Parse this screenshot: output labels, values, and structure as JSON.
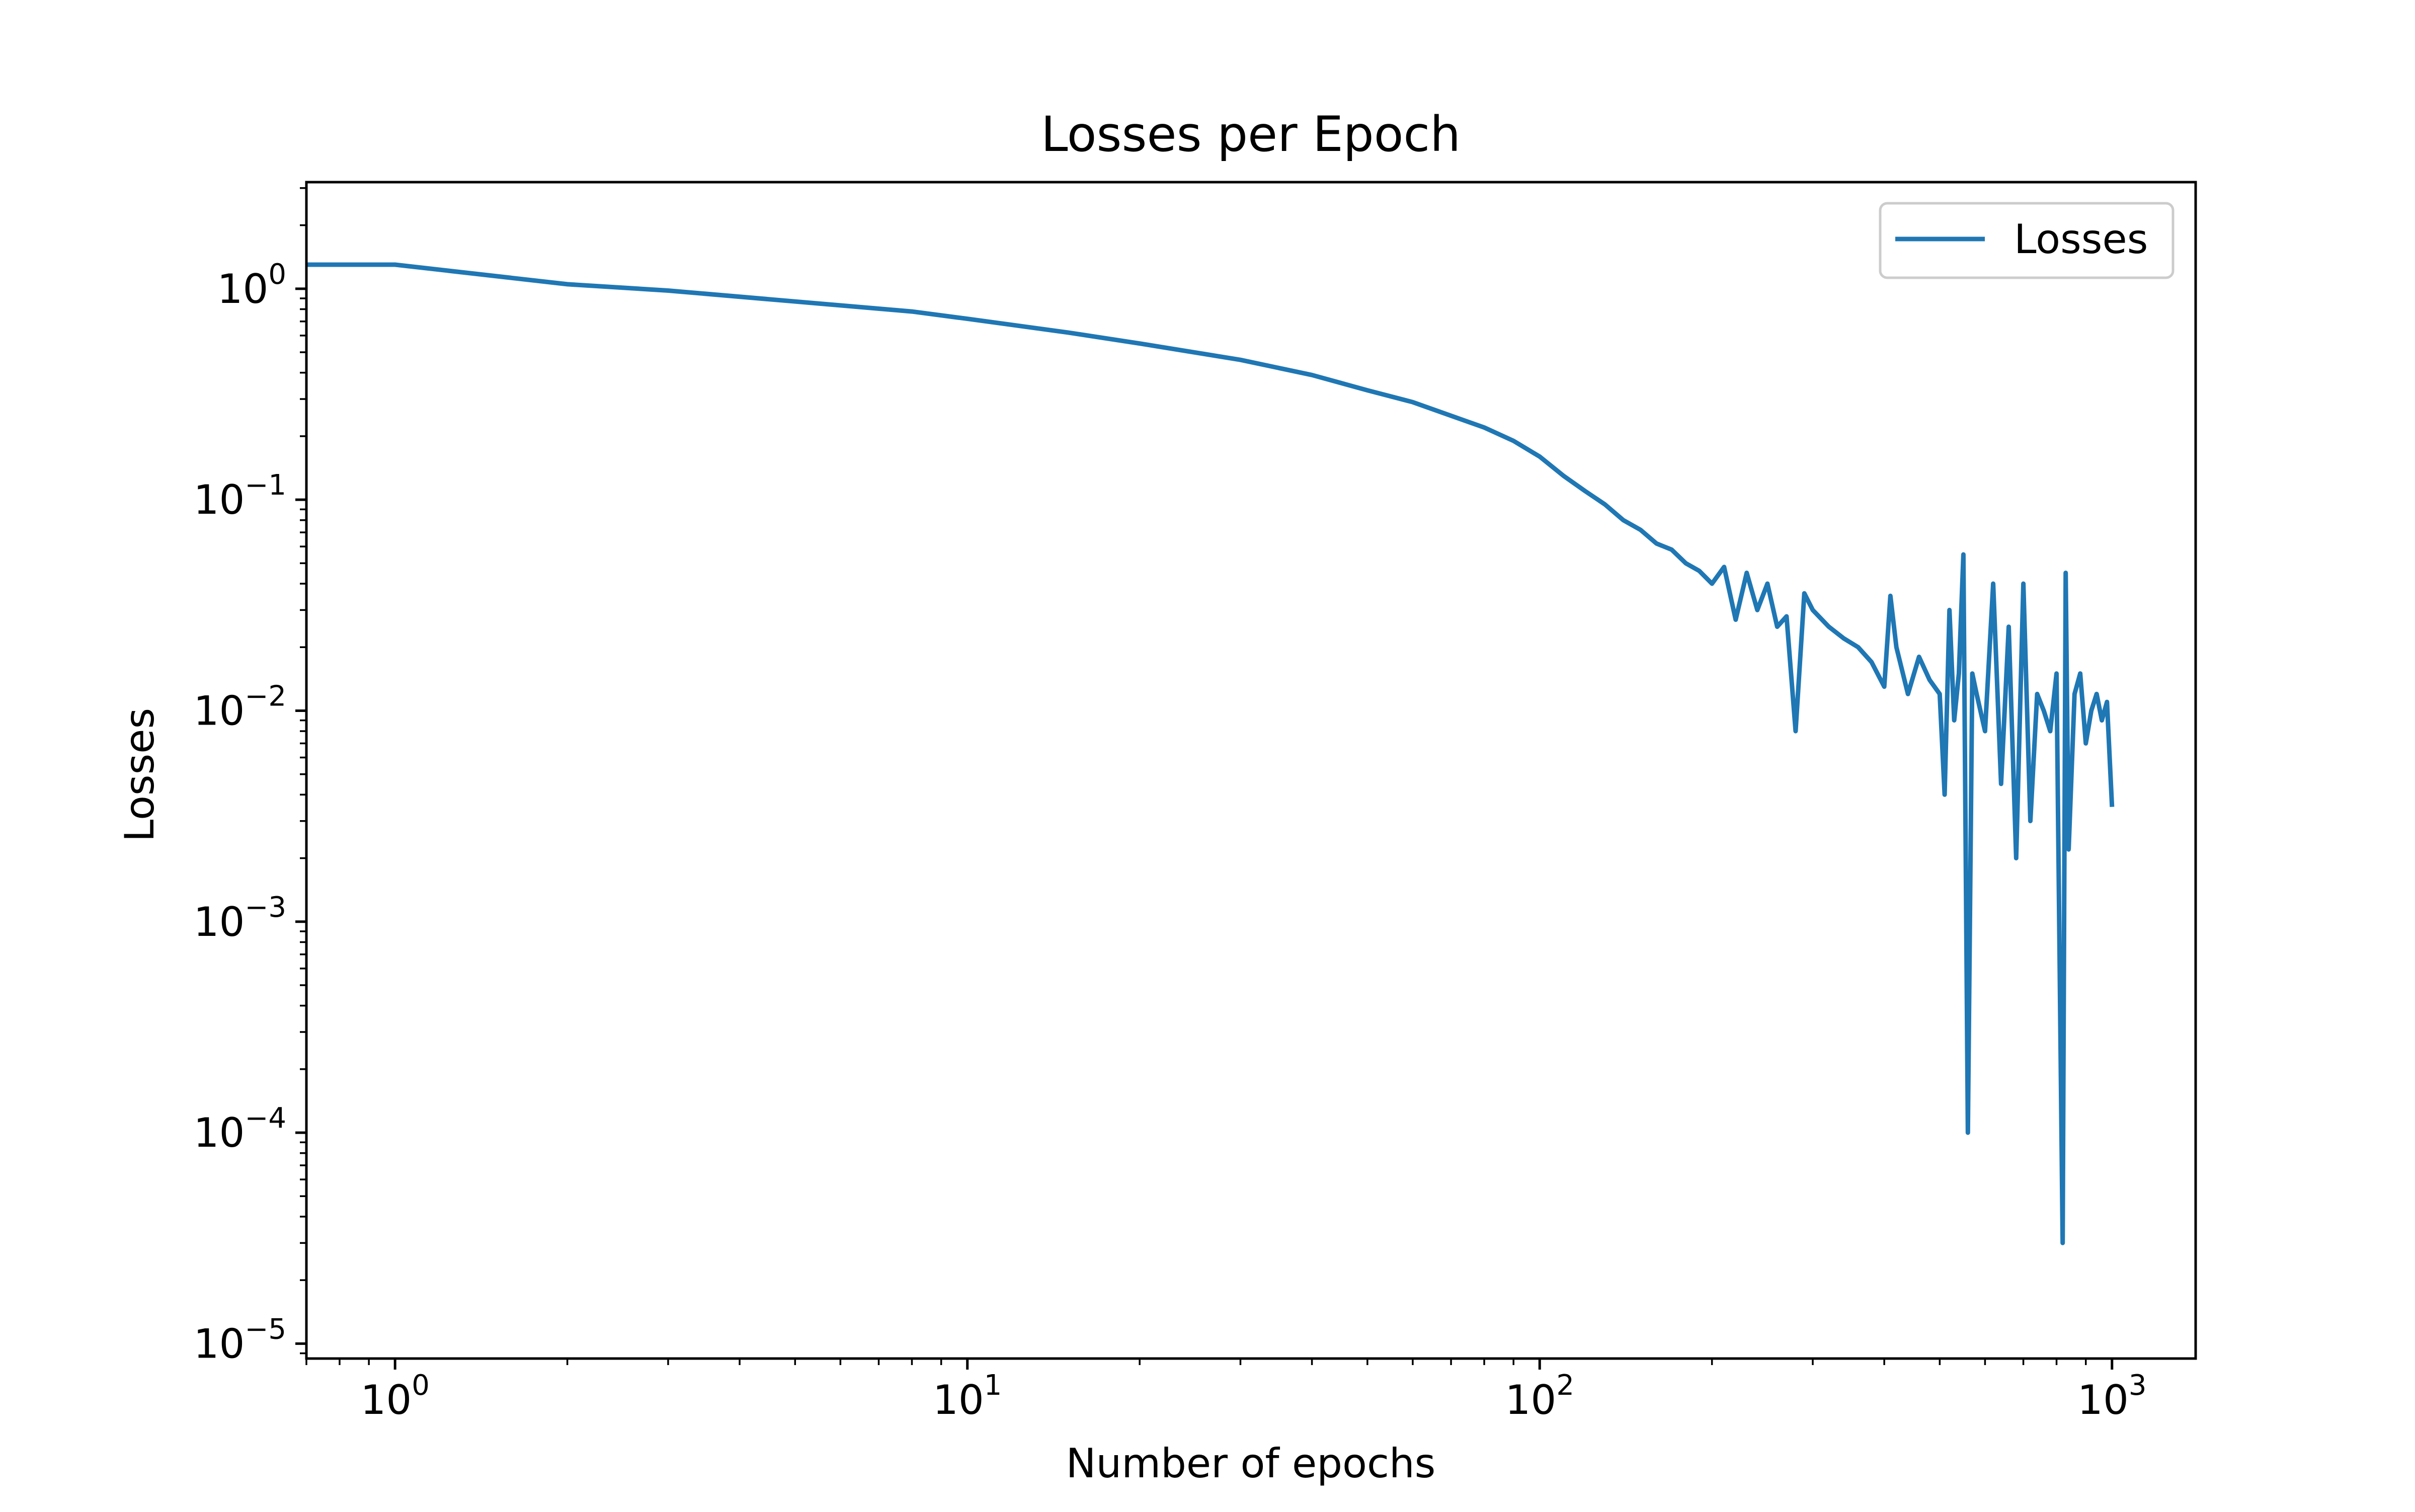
{
  "chart_data": {
    "type": "line",
    "title": "Losses per Epoch",
    "xlabel": "Number of epochs",
    "ylabel": "Losses",
    "x_scale": "log",
    "y_scale": "log",
    "xlim": [
      0.7,
      1400
    ],
    "ylim": [
      8.5e-06,
      3.2
    ],
    "grid": false,
    "legend_position": "upper-right",
    "x_tick_labels": [
      {
        "value": 1,
        "base": "10",
        "exp": "0"
      },
      {
        "value": 10,
        "base": "10",
        "exp": "1"
      },
      {
        "value": 100,
        "base": "10",
        "exp": "2"
      },
      {
        "value": 1000,
        "base": "10",
        "exp": "3"
      }
    ],
    "y_tick_labels": [
      {
        "value": 1,
        "base": "10",
        "exp": "0"
      },
      {
        "value": 0.1,
        "base": "10",
        "exp": "−1"
      },
      {
        "value": 0.01,
        "base": "10",
        "exp": "−2"
      },
      {
        "value": 0.001,
        "base": "10",
        "exp": "−3"
      },
      {
        "value": 0.0001,
        "base": "10",
        "exp": "−4"
      },
      {
        "value": 1e-05,
        "base": "10",
        "exp": "−5"
      }
    ],
    "series": [
      {
        "name": "Losses",
        "color": "#1f77b4",
        "x": [
          0,
          1,
          2,
          3,
          5,
          8,
          10,
          15,
          20,
          30,
          40,
          50,
          60,
          70,
          80,
          90,
          100,
          110,
          120,
          130,
          140,
          150,
          160,
          170,
          180,
          190,
          200,
          210,
          220,
          230,
          240,
          250,
          260,
          270,
          280,
          290,
          300,
          320,
          340,
          360,
          380,
          400,
          410,
          420,
          440,
          460,
          480,
          500,
          510,
          520,
          530,
          540,
          550,
          560,
          570,
          580,
          600,
          620,
          640,
          660,
          680,
          700,
          720,
          740,
          760,
          780,
          800,
          820,
          830,
          840,
          860,
          880,
          900,
          920,
          940,
          960,
          980,
          1000
        ],
        "y": [
          1.3,
          1.3,
          1.05,
          0.98,
          0.87,
          0.78,
          0.72,
          0.62,
          0.55,
          0.46,
          0.39,
          0.33,
          0.29,
          0.25,
          0.22,
          0.19,
          0.16,
          0.13,
          0.11,
          0.095,
          0.08,
          0.072,
          0.062,
          0.058,
          0.05,
          0.046,
          0.04,
          0.048,
          0.027,
          0.045,
          0.03,
          0.04,
          0.025,
          0.028,
          0.008,
          0.036,
          0.03,
          0.025,
          0.022,
          0.02,
          0.017,
          0.013,
          0.035,
          0.02,
          0.012,
          0.018,
          0.014,
          0.012,
          0.004,
          0.03,
          0.009,
          0.015,
          0.055,
          0.0001,
          0.015,
          0.012,
          0.008,
          0.04,
          0.0045,
          0.025,
          0.002,
          0.04,
          0.003,
          0.012,
          0.01,
          0.008,
          0.015,
          3e-05,
          0.045,
          0.0022,
          0.012,
          0.015,
          0.007,
          0.01,
          0.012,
          0.009,
          0.011,
          0.0035
        ]
      }
    ]
  }
}
